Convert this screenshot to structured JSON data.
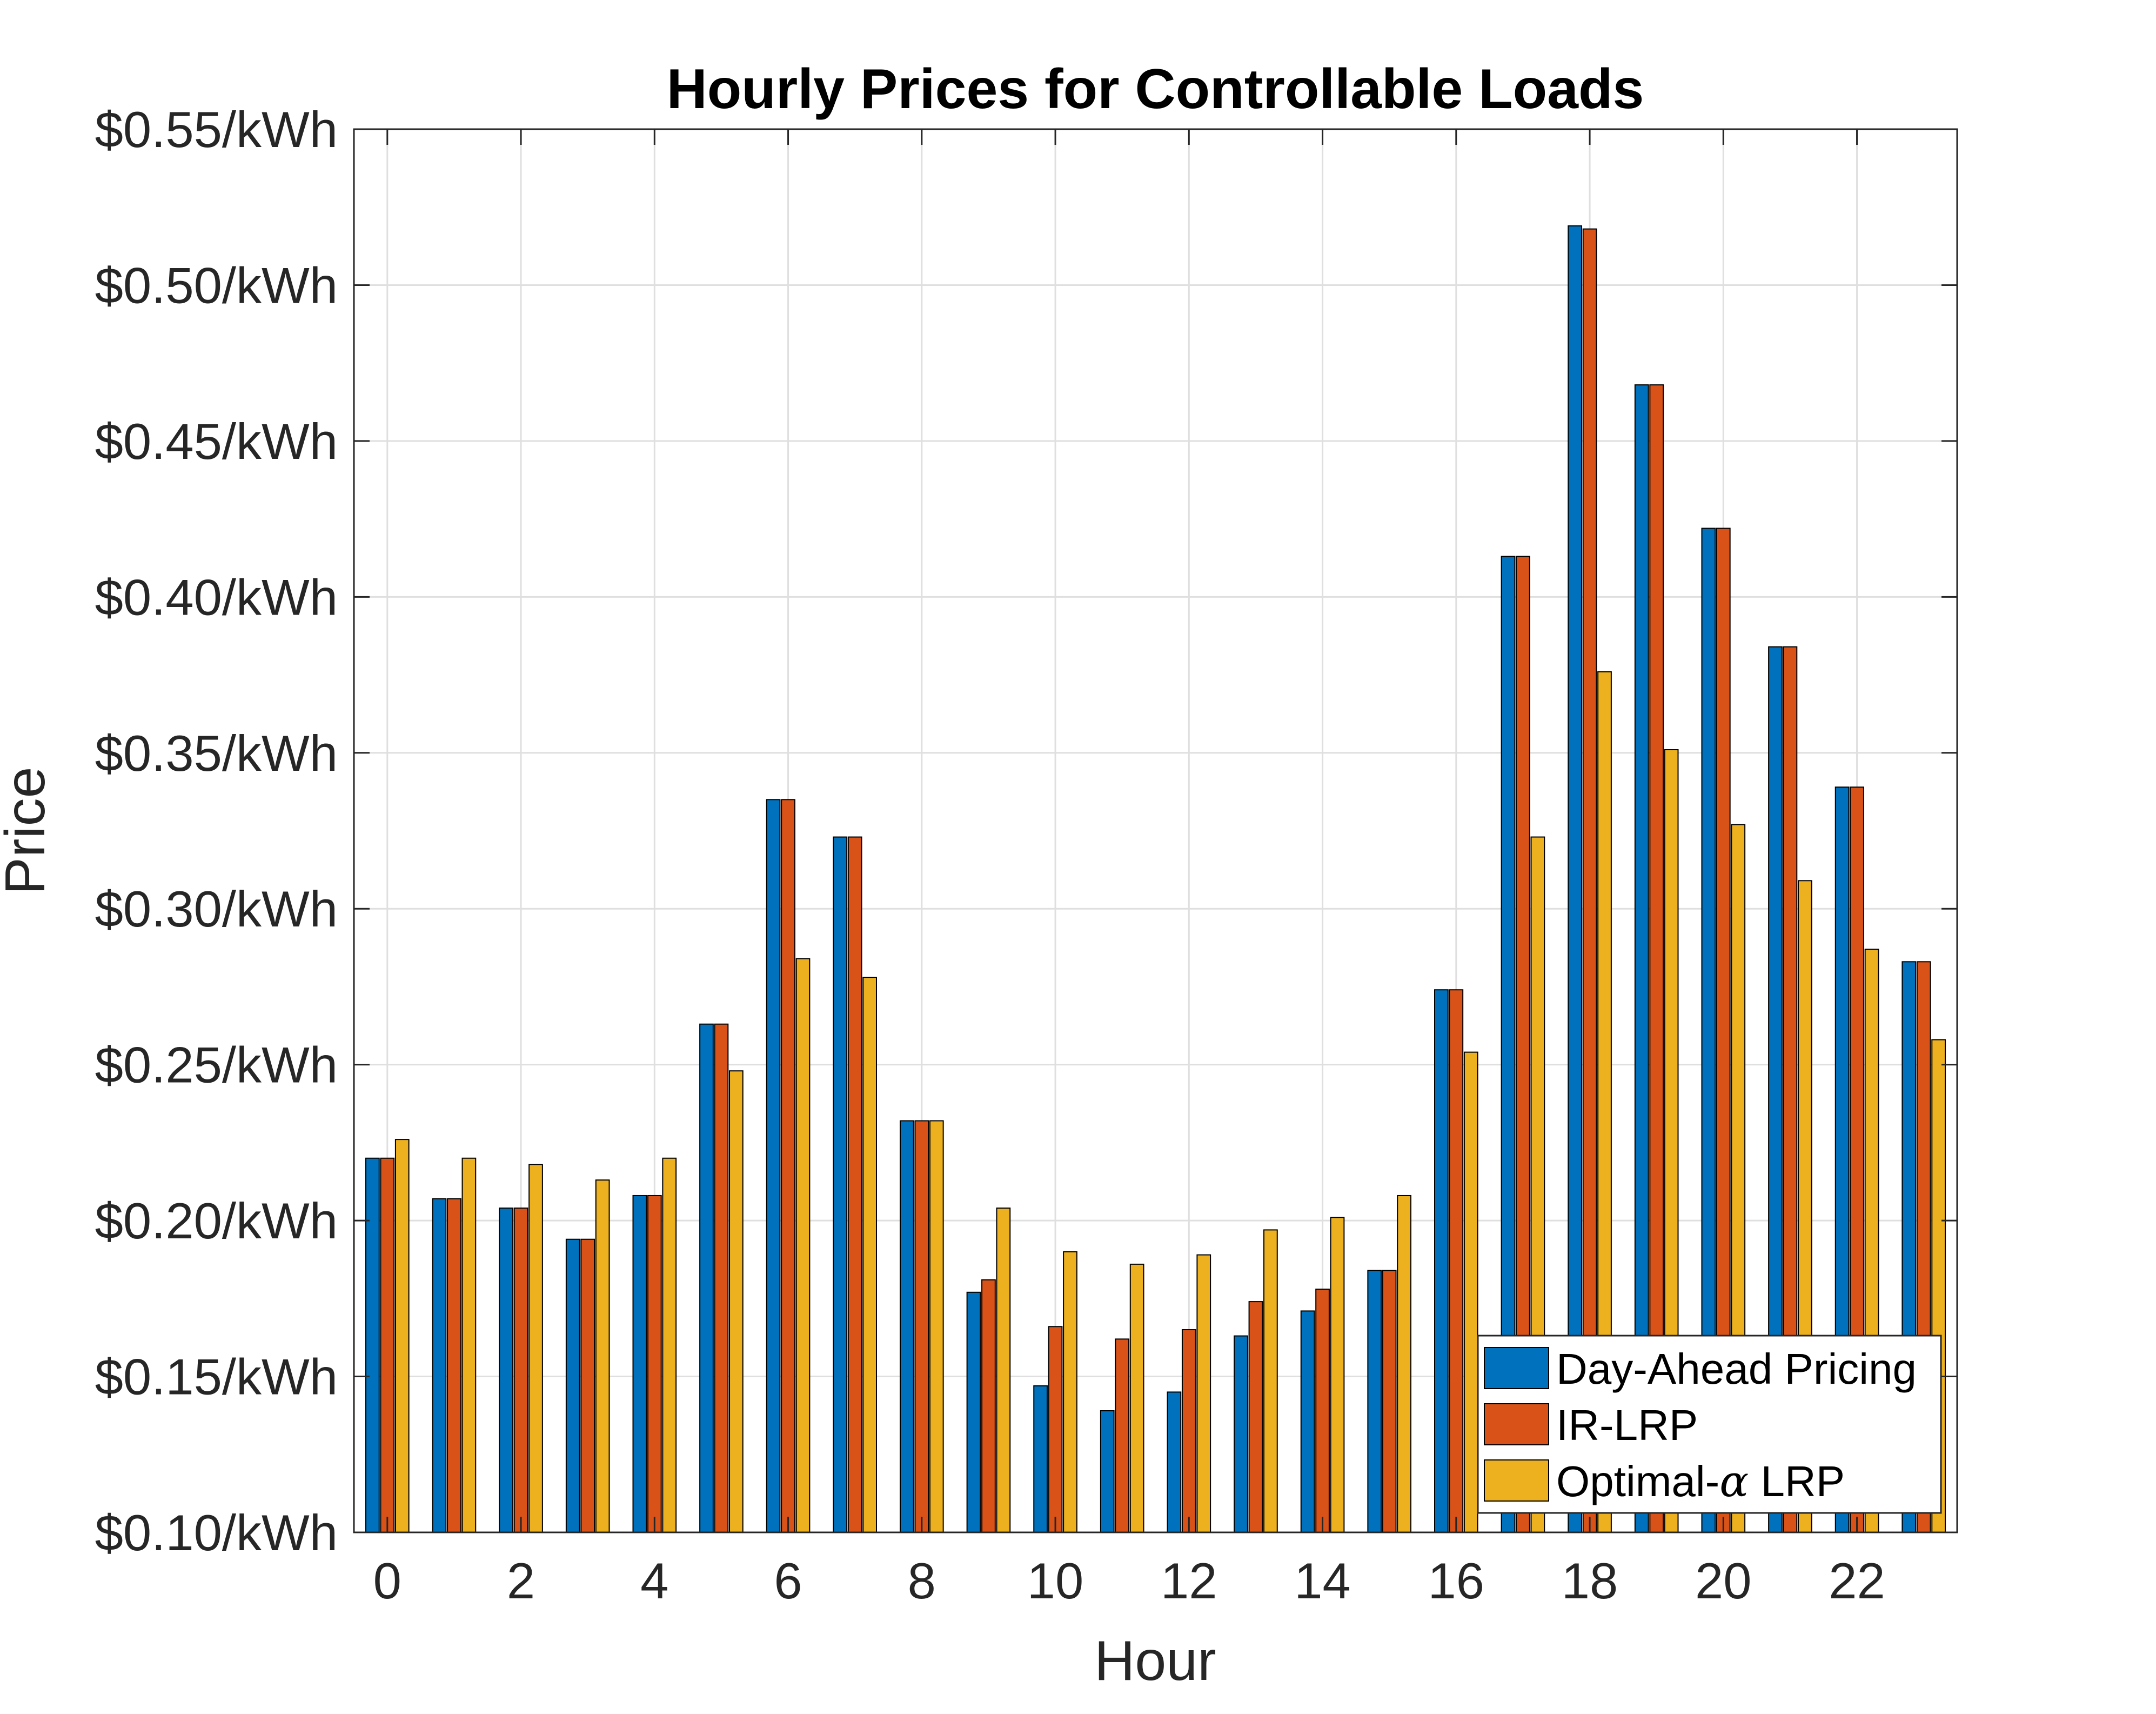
{
  "chart_data": {
    "type": "bar",
    "title": "Hourly Prices for Controllable Loads",
    "xlabel": "Hour",
    "ylabel": "Price",
    "ylim": [
      0.1,
      0.55
    ],
    "xlim": [
      -0.5,
      23.5
    ],
    "grid": true,
    "legend_position": "bottom-right",
    "x_ticks": [
      0,
      2,
      4,
      6,
      8,
      10,
      12,
      14,
      16,
      18,
      20,
      22
    ],
    "x_tick_labels": [
      "0",
      "2",
      "4",
      "6",
      "8",
      "10",
      "12",
      "14",
      "16",
      "18",
      "20",
      "22"
    ],
    "y_ticks": [
      0.1,
      0.15,
      0.2,
      0.25,
      0.3,
      0.35,
      0.4,
      0.45,
      0.5,
      0.55
    ],
    "y_tick_labels": [
      "$0.10/kWh",
      "$0.15/kWh",
      "$0.20/kWh",
      "$0.25/kWh",
      "$0.30/kWh",
      "$0.35/kWh",
      "$0.40/kWh",
      "$0.45/kWh",
      "$0.50/kWh",
      "$0.55/kWh"
    ],
    "categories": [
      0,
      1,
      2,
      3,
      4,
      5,
      6,
      7,
      8,
      9,
      10,
      11,
      12,
      13,
      14,
      15,
      16,
      17,
      18,
      19,
      20,
      21,
      22,
      23
    ],
    "series": [
      {
        "name": "Day-Ahead Pricing",
        "color": "#0072BD",
        "values": [
          0.22,
          0.207,
          0.204,
          0.194,
          0.208,
          0.263,
          0.335,
          0.323,
          0.232,
          0.177,
          0.147,
          0.139,
          0.145,
          0.163,
          0.171,
          0.184,
          0.274,
          0.413,
          0.519,
          0.468,
          0.422,
          0.384,
          0.339,
          0.283
        ]
      },
      {
        "name": "IR-LRP",
        "color": "#D95319",
        "values": [
          0.22,
          0.207,
          0.204,
          0.194,
          0.208,
          0.263,
          0.335,
          0.323,
          0.232,
          0.181,
          0.166,
          0.162,
          0.165,
          0.174,
          0.178,
          0.184,
          0.274,
          0.413,
          0.518,
          0.468,
          0.422,
          0.384,
          0.339,
          0.283
        ]
      },
      {
        "name": "Optimal-α LRP",
        "name_prefix": "Optimal-",
        "name_symbol": "α",
        "name_suffix": " LRP",
        "color": "#EDB120",
        "values": [
          0.226,
          0.22,
          0.218,
          0.213,
          0.22,
          0.248,
          0.284,
          0.278,
          0.232,
          0.204,
          0.19,
          0.186,
          0.189,
          0.197,
          0.201,
          0.208,
          0.254,
          0.323,
          0.376,
          0.351,
          0.327,
          0.309,
          0.287,
          0.258
        ]
      }
    ]
  }
}
